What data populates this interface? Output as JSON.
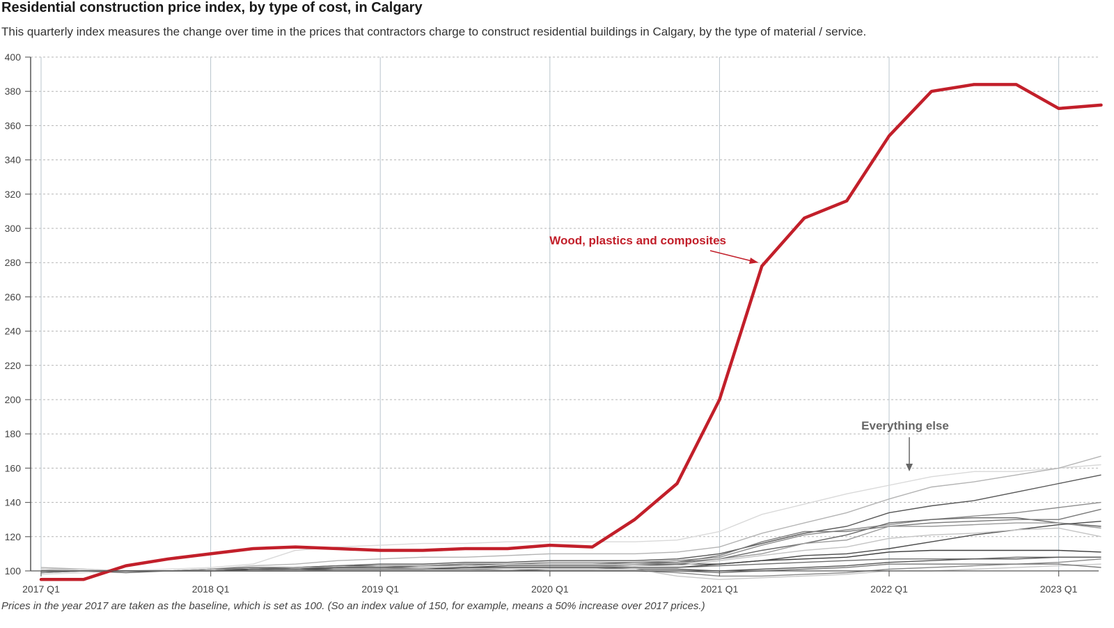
{
  "title": "Residential construction price index, by type of cost, in Calgary",
  "subtitle": "This quarterly index measures the change over time in the prices that contractors charge to construct residential buildings in Calgary, by the type of material / service.",
  "note": "Prices in the year 2017 are taken as the baseline, which is set as 100. (So an index value of 150, for example, means a 50% increase over 2017 prices.)",
  "colors": {
    "highlight": "#c21f2a",
    "annotation_grey": "#666666",
    "grid": "#bbbbbb"
  },
  "chart_data": {
    "type": "line",
    "x": [
      "2017 Q1",
      "2017 Q2",
      "2017 Q3",
      "2017 Q4",
      "2018 Q1",
      "2018 Q2",
      "2018 Q3",
      "2018 Q4",
      "2019 Q1",
      "2019 Q2",
      "2019 Q3",
      "2019 Q4",
      "2020 Q1",
      "2020 Q2",
      "2020 Q3",
      "2020 Q4",
      "2021 Q1",
      "2021 Q2",
      "2021 Q3",
      "2021 Q4",
      "2022 Q1",
      "2022 Q2",
      "2022 Q3",
      "2022 Q4",
      "2023 Q1",
      "2023 Q2"
    ],
    "x_tick_labels": [
      "2017 Q1",
      "2018 Q1",
      "2019 Q1",
      "2020 Q1",
      "2021 Q1",
      "2022 Q1",
      "2023 Q1"
    ],
    "ylim": [
      100,
      400
    ],
    "y_ticks": [
      100,
      120,
      140,
      160,
      180,
      200,
      220,
      240,
      260,
      280,
      300,
      320,
      340,
      360,
      380,
      400
    ],
    "grid": true,
    "highlight_series": {
      "name": "Wood, plastics and composites",
      "values": [
        95,
        95,
        103,
        107,
        110,
        113,
        114,
        113,
        112,
        112,
        113,
        113,
        115,
        114,
        130,
        151,
        200,
        278,
        306,
        316,
        354,
        380,
        384,
        384,
        370,
        372
      ]
    },
    "other_series_label": "Everything else",
    "other_series": [
      {
        "values": [
          98,
          99,
          100,
          101,
          102,
          104,
          112,
          114,
          115,
          116,
          116,
          117,
          117,
          117,
          117,
          118,
          123,
          133,
          139,
          145,
          150,
          155,
          158,
          158,
          160,
          162
        ]
      },
      {
        "values": [
          102,
          101,
          100,
          100,
          101,
          103,
          104,
          106,
          107,
          108,
          108,
          109,
          110,
          110,
          110,
          111,
          114,
          122,
          128,
          134,
          142,
          149,
          152,
          156,
          160,
          167
        ]
      },
      {
        "values": [
          99,
          100,
          100,
          100,
          101,
          102,
          102,
          103,
          104,
          104,
          105,
          105,
          106,
          106,
          106,
          107,
          110,
          116,
          122,
          126,
          134,
          138,
          141,
          146,
          151,
          156
        ]
      },
      {
        "values": [
          101,
          100,
          100,
          100,
          100,
          101,
          101,
          102,
          103,
          103,
          104,
          104,
          105,
          105,
          105,
          106,
          108,
          115,
          121,
          124,
          127,
          130,
          132,
          134,
          137,
          140
        ]
      },
      {
        "values": [
          100,
          100,
          99,
          100,
          100,
          101,
          102,
          103,
          103,
          103,
          104,
          104,
          104,
          104,
          104,
          105,
          107,
          112,
          116,
          121,
          128,
          130,
          131,
          131,
          128,
          126
        ]
      },
      {
        "values": [
          99,
          100,
          100,
          100,
          100,
          101,
          101,
          102,
          102,
          103,
          103,
          104,
          104,
          104,
          105,
          105,
          109,
          117,
          123,
          123,
          126,
          128,
          129,
          130,
          130,
          136
        ]
      },
      {
        "values": [
          100,
          100,
          100,
          100,
          101,
          101,
          102,
          102,
          103,
          103,
          103,
          104,
          104,
          104,
          104,
          104,
          107,
          110,
          116,
          118,
          126,
          126,
          127,
          128,
          128,
          125
        ]
      },
      {
        "values": [
          100,
          100,
          100,
          100,
          100,
          101,
          101,
          102,
          102,
          102,
          102,
          103,
          103,
          103,
          103,
          104,
          104,
          106,
          109,
          110,
          113,
          117,
          121,
          124,
          127,
          129
        ]
      },
      {
        "values": [
          101,
          101,
          100,
          100,
          100,
          100,
          101,
          101,
          101,
          102,
          102,
          102,
          102,
          102,
          103,
          103,
          106,
          109,
          112,
          114,
          119,
          121,
          122,
          124,
          125,
          120
        ]
      },
      {
        "values": [
          100,
          100,
          100,
          100,
          100,
          101,
          101,
          101,
          101,
          101,
          102,
          102,
          102,
          102,
          102,
          102,
          104,
          106,
          107,
          108,
          111,
          112,
          112,
          112,
          112,
          111
        ]
      },
      {
        "values": [
          100,
          100,
          100,
          100,
          100,
          100,
          100,
          101,
          101,
          101,
          101,
          101,
          101,
          101,
          102,
          102,
          103,
          104,
          105,
          106,
          107,
          107,
          107,
          108,
          108,
          108
        ]
      },
      {
        "values": [
          100,
          100,
          100,
          100,
          100,
          100,
          100,
          100,
          100,
          100,
          100,
          100,
          101,
          101,
          101,
          101,
          100,
          101,
          102,
          103,
          105,
          106,
          107,
          107,
          108,
          108
        ]
      },
      {
        "values": [
          100,
          100,
          100,
          100,
          100,
          100,
          100,
          100,
          100,
          100,
          100,
          100,
          100,
          100,
          100,
          99,
          97,
          97,
          98,
          99,
          101,
          102,
          103,
          104,
          105,
          107
        ]
      },
      {
        "values": [
          101,
          100,
          100,
          100,
          100,
          100,
          100,
          100,
          100,
          100,
          100,
          101,
          101,
          101,
          101,
          97,
          95,
          96,
          97,
          98,
          100,
          100,
          101,
          102,
          103,
          104
        ]
      },
      {
        "values": [
          100,
          100,
          100,
          100,
          100,
          100,
          100,
          100,
          100,
          100,
          100,
          100,
          100,
          100,
          100,
          100,
          99,
          100,
          101,
          102,
          104,
          104,
          104,
          104,
          104,
          102
        ]
      }
    ]
  }
}
